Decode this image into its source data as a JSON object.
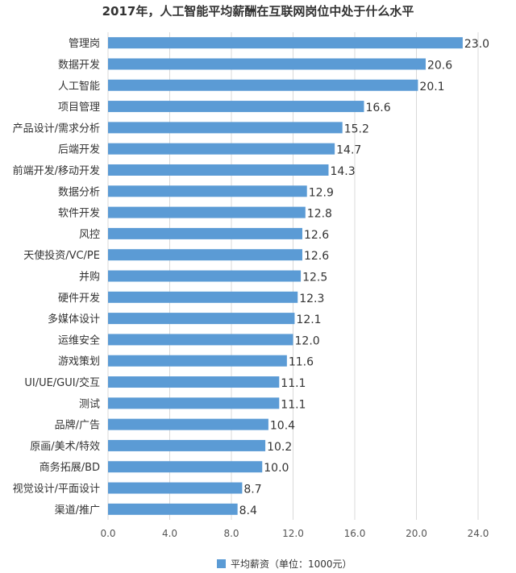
{
  "chart_data": {
    "type": "bar",
    "orientation": "horizontal",
    "title": "2017年，人工智能平均薪酬在互联网岗位中处于什么水平",
    "categories": [
      "管理岗",
      "数据开发",
      "人工智能",
      "项目管理",
      "产品设计/需求分析",
      "后端开发",
      "前端开发/移动开发",
      "数据分析",
      "软件开发",
      "风控",
      "天使投资/VC/PE",
      "并购",
      "硬件开发",
      "多媒体设计",
      "运维安全",
      "游戏策划",
      "UI/UE/GUI/交互",
      "测试",
      "品牌/广告",
      "原画/美术/特效",
      "商务拓展/BD",
      "视觉设计/平面设计",
      "渠道/推广"
    ],
    "series": [
      {
        "name": "平均薪资（单位：1000元）",
        "values": [
          23.0,
          20.6,
          20.1,
          16.6,
          15.2,
          14.7,
          14.3,
          12.9,
          12.8,
          12.6,
          12.6,
          12.5,
          12.3,
          12.1,
          12.0,
          11.6,
          11.1,
          11.1,
          10.4,
          10.2,
          10.0,
          8.7,
          8.4
        ],
        "color": "#5b9bd5"
      }
    ],
    "xlim": [
      0,
      24
    ],
    "xticks": [
      "0.0",
      "4.0",
      "8.0",
      "12.0",
      "16.0",
      "20.0",
      "24.0"
    ],
    "grid": "vertical",
    "legend_position": "bottom"
  }
}
